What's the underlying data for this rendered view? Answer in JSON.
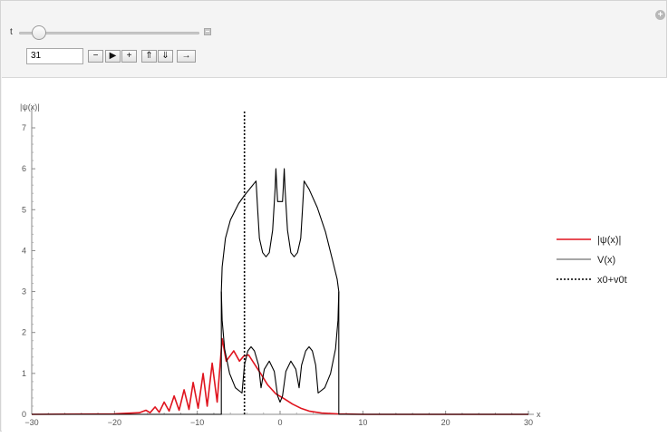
{
  "controls": {
    "slider_label": "t",
    "value": "31",
    "buttons": [
      "−",
      "▶",
      "+",
      "⇑",
      "⇓",
      "→"
    ],
    "slider_fraction": 0.11
  },
  "chart_data": {
    "type": "line",
    "ylabel": "|ψ(x)|",
    "xlabel": "x",
    "xlim": [
      -30,
      30
    ],
    "ylim": [
      0,
      7.5
    ],
    "x_ticks": [
      "−30",
      "−20",
      "−10",
      "0",
      "10",
      "20",
      "30"
    ],
    "y_ticks": [
      "0",
      "1",
      "2",
      "3",
      "4",
      "5",
      "6",
      "7"
    ],
    "legend_position": "right",
    "legend": [
      {
        "label": "|ψ(x)|",
        "color": "#e0141e",
        "style": "solid"
      },
      {
        "label": "V(x)",
        "color": "#707070",
        "style": "solid"
      },
      {
        "label": "x0+v0t",
        "color": "#000000",
        "style": "dotted"
      }
    ],
    "series": [
      {
        "name": "|ψ(x)|",
        "color": "#e0141e",
        "points": [
          [
            -30,
            0
          ],
          [
            -20,
            0.01
          ],
          [
            -17,
            0.04
          ],
          [
            -16.2,
            0.1
          ],
          [
            -15.7,
            0.04
          ],
          [
            -15.1,
            0.18
          ],
          [
            -14.6,
            0.05
          ],
          [
            -14.0,
            0.3
          ],
          [
            -13.4,
            0.08
          ],
          [
            -12.8,
            0.45
          ],
          [
            -12.2,
            0.1
          ],
          [
            -11.6,
            0.6
          ],
          [
            -11.0,
            0.12
          ],
          [
            -10.5,
            0.78
          ],
          [
            -9.9,
            0.15
          ],
          [
            -9.3,
            1.0
          ],
          [
            -8.8,
            0.2
          ],
          [
            -8.2,
            1.25
          ],
          [
            -7.6,
            0.3
          ],
          [
            -7.0,
            1.85
          ],
          [
            -6.5,
            1.3
          ],
          [
            -5.6,
            1.55
          ],
          [
            -4.9,
            1.3
          ],
          [
            -4.4,
            1.42
          ],
          [
            -3.8,
            1.45
          ],
          [
            -3.0,
            1.2
          ],
          [
            -2.2,
            0.95
          ],
          [
            -1.5,
            0.72
          ],
          [
            -0.5,
            0.5
          ],
          [
            0.5,
            0.38
          ],
          [
            1.5,
            0.25
          ],
          [
            2.5,
            0.15
          ],
          [
            3.5,
            0.08
          ],
          [
            5,
            0.03
          ],
          [
            7,
            0.01
          ],
          [
            10,
            0.0
          ],
          [
            30,
            0
          ]
        ]
      },
      {
        "name": "V(x)",
        "color": "#000000",
        "points": [
          [
            -30,
            0
          ],
          [
            -7.1,
            0
          ],
          [
            -7.1,
            3.0
          ],
          [
            -7.0,
            3.6
          ],
          [
            -6.6,
            4.3
          ],
          [
            -6.0,
            4.75
          ],
          [
            -5.0,
            5.15
          ],
          [
            -4.3,
            5.35
          ],
          [
            -3.5,
            5.55
          ],
          [
            -2.9,
            5.7
          ],
          [
            -2.7,
            5.0
          ],
          [
            -2.5,
            4.3
          ],
          [
            -2.1,
            3.95
          ],
          [
            -1.7,
            3.85
          ],
          [
            -1.3,
            3.95
          ],
          [
            -0.9,
            4.5
          ],
          [
            -0.6,
            5.5
          ],
          [
            -0.5,
            6.0
          ],
          [
            -0.4,
            5.6
          ],
          [
            -0.3,
            5.2
          ],
          [
            0.3,
            5.2
          ],
          [
            0.4,
            5.6
          ],
          [
            0.5,
            6.0
          ],
          [
            0.6,
            5.5
          ],
          [
            0.9,
            4.5
          ],
          [
            1.3,
            3.95
          ],
          [
            1.7,
            3.85
          ],
          [
            2.1,
            3.95
          ],
          [
            2.5,
            4.3
          ],
          [
            2.7,
            5.0
          ],
          [
            2.9,
            5.7
          ],
          [
            3.5,
            5.5
          ],
          [
            4.5,
            5.05
          ],
          [
            5.5,
            4.45
          ],
          [
            6.3,
            3.8
          ],
          [
            6.9,
            3.3
          ],
          [
            7.1,
            3.0
          ],
          [
            7.1,
            0
          ],
          [
            30,
            0
          ]
        ]
      },
      {
        "name": "V(x) lower",
        "color": "#000000",
        "points": [
          [
            -7.1,
            3.0
          ],
          [
            -7.0,
            2.3
          ],
          [
            -6.7,
            1.6
          ],
          [
            -6.1,
            1.0
          ],
          [
            -5.4,
            0.65
          ],
          [
            -4.6,
            0.52
          ],
          [
            -4.3,
            1.2
          ],
          [
            -3.9,
            1.55
          ],
          [
            -3.5,
            1.65
          ],
          [
            -3.1,
            1.55
          ],
          [
            -2.6,
            1.2
          ],
          [
            -2.3,
            0.65
          ],
          [
            -1.9,
            1.1
          ],
          [
            -1.3,
            1.3
          ],
          [
            -0.7,
            1.05
          ],
          [
            -0.3,
            0.45
          ],
          [
            0,
            0.3
          ],
          [
            0.3,
            0.45
          ],
          [
            0.7,
            1.05
          ],
          [
            1.3,
            1.3
          ],
          [
            1.9,
            1.1
          ],
          [
            2.3,
            0.65
          ],
          [
            2.6,
            1.2
          ],
          [
            3.1,
            1.55
          ],
          [
            3.5,
            1.65
          ],
          [
            3.9,
            1.55
          ],
          [
            4.3,
            1.2
          ],
          [
            4.6,
            0.52
          ],
          [
            5.4,
            0.65
          ],
          [
            6.1,
            1.0
          ],
          [
            6.7,
            1.6
          ],
          [
            7.0,
            2.3
          ],
          [
            7.1,
            3.0
          ]
        ]
      },
      {
        "name": "x0+v0t",
        "color": "#000000",
        "dashed": true,
        "points": [
          [
            -4.3,
            0
          ],
          [
            -4.3,
            7.4
          ]
        ]
      }
    ]
  }
}
